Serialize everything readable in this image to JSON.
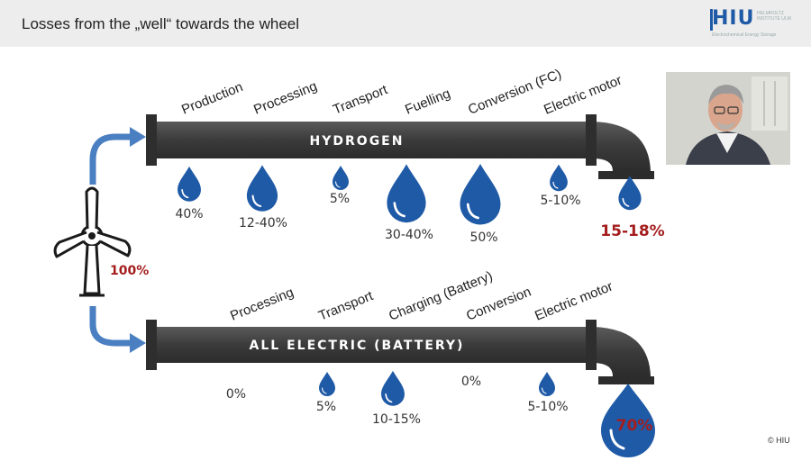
{
  "header": {
    "title": "Losses from the „well“ towards the wheel"
  },
  "logo": {
    "mark": "HIU",
    "sub": "HELMHOLTZ INSTITUTE ULM",
    "tagline": "Electrochemical Energy Storage"
  },
  "source": {
    "percent": "100%"
  },
  "hydrogen": {
    "pipe_label": "HYDROGEN",
    "stages": [
      "Production",
      "Processing",
      "Transport",
      "Fuelling",
      "Conversion (FC)",
      "Electric motor"
    ],
    "losses": [
      "40%",
      "12-40%",
      "5%",
      "30-40%",
      "50%",
      "5-10%"
    ],
    "result": "15-18%"
  },
  "electric": {
    "pipe_label": "ALL ELECTRIC (BATTERY)",
    "stages": [
      "Processing",
      "Transport",
      "Charging (Battery)",
      "Conversion",
      "Electric motor"
    ],
    "losses": [
      "0%",
      "5%",
      "10-15%",
      "0%",
      "5-10%"
    ],
    "result": "70%"
  },
  "footer": {
    "copyright": "© HIU"
  },
  "colors": {
    "pipe": "#3e3e3e",
    "drop": "#1f5aa6",
    "arrow": "#4a7fc1",
    "accent": "#a41d1d"
  }
}
